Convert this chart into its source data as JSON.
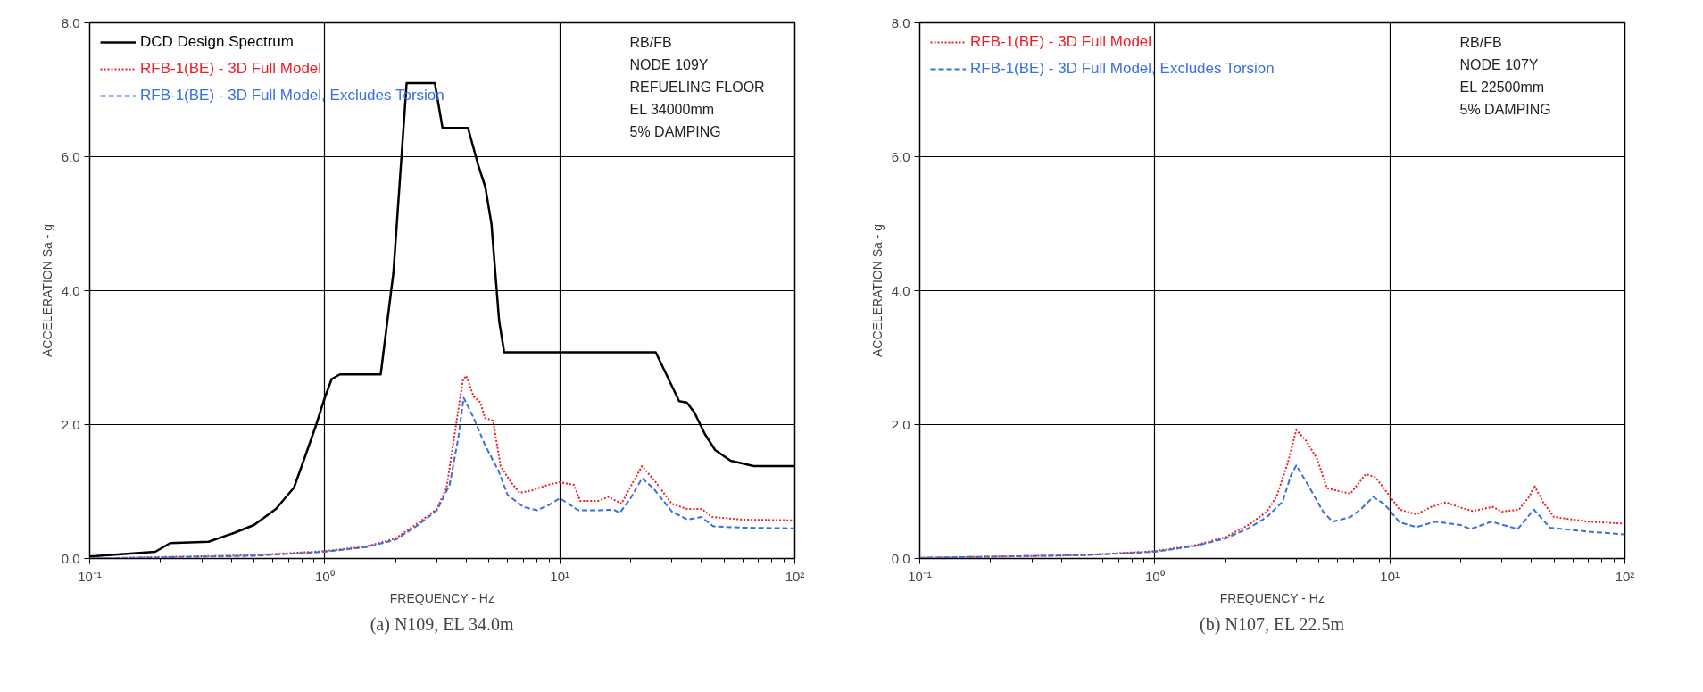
{
  "chart_data": [
    {
      "type": "line",
      "title": "(a) N109, EL 34.0m",
      "xlabel": "FREQUENCY - Hz",
      "ylabel": "ACCELERATION Sa - g",
      "log": "x",
      "grid": true,
      "legend": "top left",
      "xlim": [
        0.1,
        100
      ],
      "xticks": [
        {
          "value": 0.1,
          "label": "10⁻¹"
        },
        {
          "value": 1,
          "label": "10⁰"
        },
        {
          "value": 10,
          "label": "10¹"
        },
        {
          "value": 100,
          "label": "10²"
        }
      ],
      "ylim": [
        0,
        8
      ],
      "yticks": [
        {
          "value": 0,
          "label": "0.0"
        },
        {
          "value": 2,
          "label": "2.0"
        },
        {
          "value": 4,
          "label": "4.0"
        },
        {
          "value": 6,
          "label": "6.0"
        },
        {
          "value": 8,
          "label": "8.0"
        }
      ],
      "annotations": [
        "RB/FB",
        "NODE 109Y",
        "REFUELING FLOOR",
        "EL 34000mm",
        "5% DAMPING"
      ],
      "series": [
        {
          "name": "DCD Design Spectrum",
          "color": "#000000",
          "line_style": "solid",
          "x": [
            0.1,
            0.19,
            0.22,
            0.32,
            0.41,
            0.5,
            0.62,
            0.74,
            0.83,
            0.92,
            1.0,
            1.07,
            1.16,
            1.73,
            1.96,
            2.23,
            2.94,
            3.17,
            4.07,
            4.5,
            4.82,
            5.12,
            5.52,
            5.8,
            25.6,
            28.4,
            32.2,
            34.7,
            37.4,
            41.4,
            45.8,
            53.3,
            66.9,
            100
          ],
          "values": [
            0.03,
            0.1,
            0.23,
            0.25,
            0.38,
            0.5,
            0.74,
            1.06,
            1.55,
            2.0,
            2.4,
            2.68,
            2.75,
            2.75,
            4.27,
            7.1,
            7.1,
            6.43,
            6.43,
            5.87,
            5.55,
            5.0,
            3.55,
            3.08,
            3.08,
            2.75,
            2.35,
            2.33,
            2.18,
            1.86,
            1.62,
            1.46,
            1.38,
            1.38
          ]
        },
        {
          "name": "RFB-1(BE) - 3D Full Model",
          "color": "#ee1c24",
          "line_style": "dotted",
          "x": [
            0.1,
            0.5,
            1.0,
            1.5,
            2.0,
            2.52,
            3.0,
            3.3,
            3.6,
            3.87,
            4.0,
            4.3,
            4.6,
            4.8,
            5.2,
            5.6,
            6.2,
            6.75,
            7.66,
            8.9,
            10,
            11.5,
            12.2,
            14.6,
            16.1,
            18.3,
            20.2,
            22.4,
            25.6,
            29.9,
            34.7,
            40.2,
            44.5,
            60,
            100
          ],
          "values": [
            0.0,
            0.05,
            0.11,
            0.18,
            0.3,
            0.54,
            0.74,
            1.06,
            1.94,
            2.66,
            2.73,
            2.42,
            2.33,
            2.1,
            2.06,
            1.38,
            1.14,
            0.98,
            1.02,
            1.1,
            1.14,
            1.1,
            0.86,
            0.86,
            0.92,
            0.82,
            1.1,
            1.38,
            1.14,
            0.82,
            0.74,
            0.74,
            0.62,
            0.58,
            0.57
          ]
        },
        {
          "name": "RFB-1(BE) - 3D Full Model, Excludes Torsion",
          "color": "#3a6fe0",
          "line_style": "dashed",
          "x": [
            0.1,
            0.5,
            1.0,
            1.5,
            2.0,
            2.5,
            3.0,
            3.4,
            3.7,
            3.9,
            4.3,
            4.8,
            5.5,
            6.0,
            7,
            8,
            9,
            10,
            12,
            14.6,
            17,
            18,
            20,
            22.4,
            25,
            30,
            35,
            40,
            45,
            60,
            100
          ],
          "values": [
            0.0,
            0.04,
            0.1,
            0.17,
            0.28,
            0.5,
            0.72,
            1.1,
            1.8,
            2.4,
            2.1,
            1.7,
            1.3,
            0.95,
            0.77,
            0.72,
            0.8,
            0.9,
            0.72,
            0.72,
            0.73,
            0.68,
            0.9,
            1.2,
            1.05,
            0.7,
            0.58,
            0.62,
            0.48,
            0.46,
            0.45
          ]
        }
      ]
    },
    {
      "type": "line",
      "title": "(b) N107, EL 22.5m",
      "xlabel": "FREQUENCY - Hz",
      "ylabel": "ACCELERATION Sa - g",
      "log": "x",
      "grid": true,
      "legend": "top left",
      "xlim": [
        0.1,
        100
      ],
      "xticks": [
        {
          "value": 0.1,
          "label": "10⁻¹"
        },
        {
          "value": 1,
          "label": "10⁰"
        },
        {
          "value": 10,
          "label": "10¹"
        },
        {
          "value": 100,
          "label": "10²"
        }
      ],
      "ylim": [
        0,
        8
      ],
      "yticks": [
        {
          "value": 0,
          "label": "0.0"
        },
        {
          "value": 2,
          "label": "2.0"
        },
        {
          "value": 4,
          "label": "4.0"
        },
        {
          "value": 6,
          "label": "6.0"
        },
        {
          "value": 8,
          "label": "8.0"
        }
      ],
      "annotations": [
        "RB/FB",
        "NODE 107Y",
        "EL 22500mm",
        "5% DAMPING"
      ],
      "series": [
        {
          "name": "RFB-1(BE) - 3D Full Model",
          "color": "#ee1c24",
          "line_style": "dotted",
          "x": [
            0.1,
            0.5,
            1.0,
            1.5,
            2.0,
            2.5,
            3.0,
            3.3,
            3.66,
            4.0,
            4.4,
            4.9,
            5.4,
            6.18,
            6.8,
            7.9,
            8.7,
            10,
            11,
            13,
            15,
            17.3,
            20,
            22.5,
            27.4,
            30,
            35.4,
            39.3,
            41.2,
            44.7,
            49.9,
            70,
            100
          ],
          "values": [
            0.01,
            0.05,
            0.11,
            0.2,
            0.32,
            0.5,
            0.7,
            0.93,
            1.4,
            1.92,
            1.76,
            1.49,
            1.05,
            1.0,
            0.97,
            1.26,
            1.21,
            0.93,
            0.73,
            0.66,
            0.77,
            0.84,
            0.76,
            0.71,
            0.77,
            0.7,
            0.73,
            0.93,
            1.09,
            0.85,
            0.62,
            0.55,
            0.52
          ]
        },
        {
          "name": "RFB-1(BE) - 3D Full Model, Excludes Torsion",
          "color": "#3a6fe0",
          "line_style": "dashed",
          "x": [
            0.1,
            0.5,
            1.0,
            1.5,
            2.0,
            2.5,
            3.0,
            3.5,
            3.8,
            4.0,
            4.5,
            5.2,
            5.7,
            6.8,
            7.5,
            8.5,
            9.5,
            11,
            13,
            15.6,
            20,
            22,
            27,
            35,
            41,
            48,
            70,
            100
          ],
          "values": [
            0.01,
            0.05,
            0.1,
            0.19,
            0.3,
            0.45,
            0.62,
            0.85,
            1.25,
            1.39,
            1.09,
            0.7,
            0.55,
            0.62,
            0.73,
            0.92,
            0.81,
            0.54,
            0.47,
            0.55,
            0.5,
            0.44,
            0.55,
            0.44,
            0.73,
            0.46,
            0.4,
            0.36
          ]
        }
      ]
    }
  ]
}
